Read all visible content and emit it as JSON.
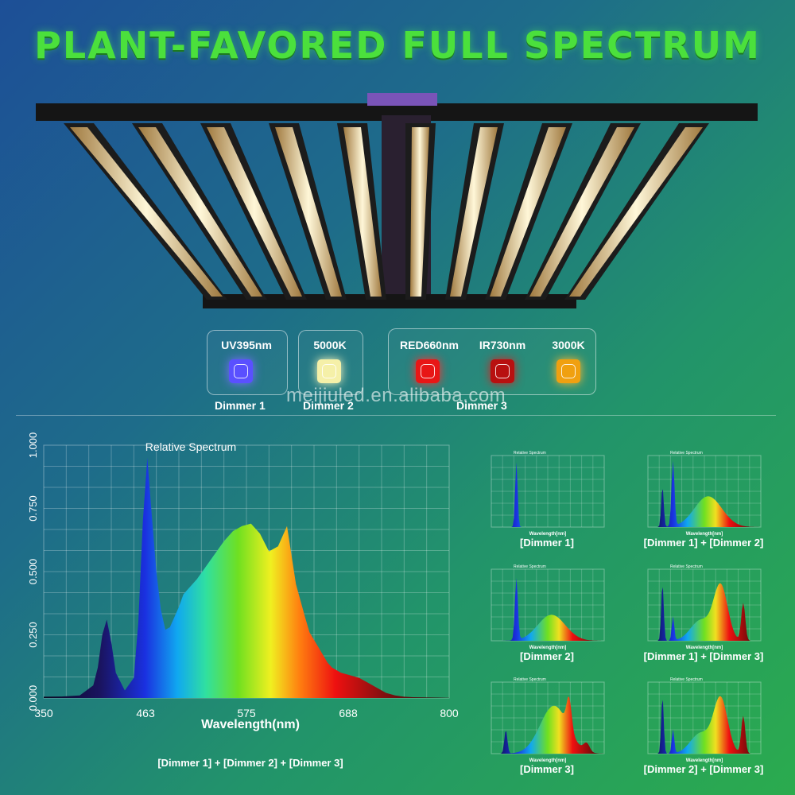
{
  "headline": "PLANT-FAVORED FULL SPECTRUM",
  "watermark": "meijiuled.en.alibaba.com",
  "channels": [
    {
      "label": "UV395nm",
      "color": "#5a50ff"
    },
    {
      "label": "5000K",
      "color": "#f5f0a8"
    },
    {
      "label": "RED660nm",
      "color": "#e81616"
    },
    {
      "label": "IR730nm",
      "color": "#b81010"
    },
    {
      "label": "3000K",
      "color": "#f0a010"
    }
  ],
  "dimmers": {
    "d1": "Dimmer 1",
    "d2": "Dimmer 2",
    "d3": "Dimmer 3"
  },
  "main_caption": "[Dimmer 1] + [Dimmer 2] + [Dimmer 3]",
  "thumb_captions": [
    "[Dimmer 1]",
    "[Dimmer 1] + [Dimmer 2]",
    "[Dimmer 2]",
    "[Dimmer 1] + [Dimmer 3]",
    "[Dimmer 3]",
    "[Dimmer 2] + [Dimmer 3]"
  ],
  "thumb_titles": [
    "Relative Spectrum",
    "Relative Spectrum",
    "Relative Spectrum",
    "Relative Spectrum",
    "Relative Spectrum",
    "Relative Spectrum"
  ],
  "thumb_xlabels": [
    "Wavelength[nm]",
    "Wavelength[nm]",
    "Wavelength[nm]",
    "Wavelength[nm]",
    "Wavelength[nm]",
    "Wavelength[nm]"
  ],
  "chart_data": {
    "type": "area",
    "title": "Relative Spectrum",
    "xlabel": "Wavelength(nm)",
    "ylabel": "",
    "xlim": [
      350,
      800
    ],
    "ylim": [
      0,
      1
    ],
    "x_ticks": [
      350,
      463,
      575,
      688,
      800
    ],
    "y_ticks": [
      "0.000",
      "0.250",
      "0.500",
      "0.750",
      "1.000"
    ],
    "grid": true,
    "x": [
      350,
      370,
      390,
      405,
      410,
      415,
      420,
      425,
      430,
      440,
      450,
      455,
      460,
      465,
      470,
      475,
      480,
      485,
      490,
      500,
      505,
      510,
      520,
      530,
      540,
      550,
      560,
      570,
      580,
      590,
      600,
      610,
      620,
      630,
      640,
      645,
      650,
      655,
      660,
      665,
      670,
      680,
      690,
      700,
      710,
      720,
      730,
      740,
      750,
      760,
      780,
      800
    ],
    "y": [
      0.005,
      0.006,
      0.01,
      0.05,
      0.12,
      0.25,
      0.31,
      0.22,
      0.1,
      0.03,
      0.08,
      0.3,
      0.7,
      0.95,
      0.72,
      0.5,
      0.35,
      0.27,
      0.28,
      0.36,
      0.41,
      0.43,
      0.47,
      0.52,
      0.57,
      0.62,
      0.66,
      0.68,
      0.69,
      0.65,
      0.58,
      0.6,
      0.68,
      0.45,
      0.32,
      0.26,
      0.23,
      0.2,
      0.17,
      0.14,
      0.12,
      0.1,
      0.09,
      0.08,
      0.06,
      0.04,
      0.02,
      0.01,
      0.005,
      0.003,
      0.002,
      0.001
    ]
  }
}
